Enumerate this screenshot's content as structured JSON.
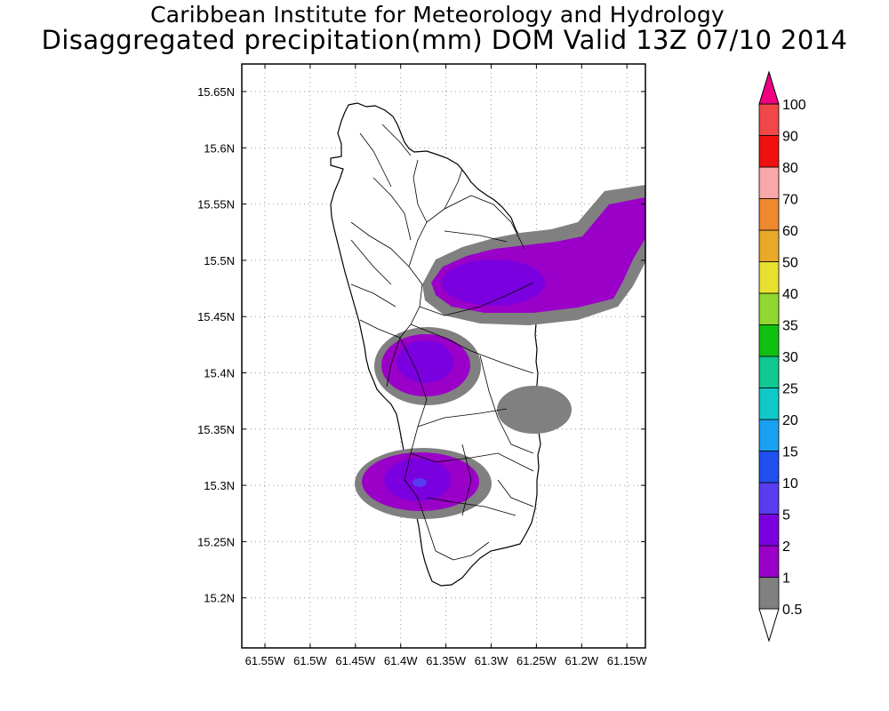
{
  "title": "Caribbean Institute for Meteorology and Hydrology",
  "subtitle": "Disaggregated precipitation(mm) DOM Valid 13Z 07/10 2014",
  "lat_ticks": [
    "15.65N",
    "15.6N",
    "15.55N",
    "15.5N",
    "15.45N",
    "15.4N",
    "15.35N",
    "15.3N",
    "15.25N",
    "15.2N"
  ],
  "lon_ticks": [
    "61.55W",
    "61.5W",
    "61.45W",
    "61.4W",
    "61.35W",
    "61.3W",
    "61.25W",
    "61.2W",
    "61.15W"
  ],
  "colorbar": {
    "labels": [
      "0.5",
      "1",
      "2",
      "5",
      "10",
      "15",
      "20",
      "25",
      "30",
      "35",
      "40",
      "50",
      "60",
      "70",
      "80",
      "90",
      "100"
    ],
    "colors": [
      "#808080",
      "#9a00c8",
      "#7b00e0",
      "#5a3cf0",
      "#2050f0",
      "#1aa0f0",
      "#10c8c8",
      "#10c890",
      "#10c010",
      "#90d830",
      "#e8e030",
      "#e8a828",
      "#f08830",
      "#f8a8a8",
      "#f01010",
      "#f04848",
      "#f00080"
    ]
  },
  "chart_data": {
    "type": "heatmap",
    "title": "Disaggregated precipitation(mm) DOM Valid 13Z 07/10 2014",
    "x_range": [
      "61.57W",
      "61.14W"
    ],
    "y_range": [
      "15.15N",
      "15.68N"
    ],
    "grid": true,
    "legend": "right",
    "precip_areas": [
      {
        "center": [
          "61.25W",
          "15.49N"
        ],
        "max_bin_mm": "2-5"
      },
      {
        "center": [
          "61.38W",
          "15.405N"
        ],
        "max_bin_mm": "2-5"
      },
      {
        "center": [
          "61.26W",
          "15.36N"
        ],
        "max_bin_mm": "0.5-1"
      },
      {
        "center": [
          "61.38W",
          "15.30N"
        ],
        "max_bin_mm": "5-10"
      }
    ]
  }
}
